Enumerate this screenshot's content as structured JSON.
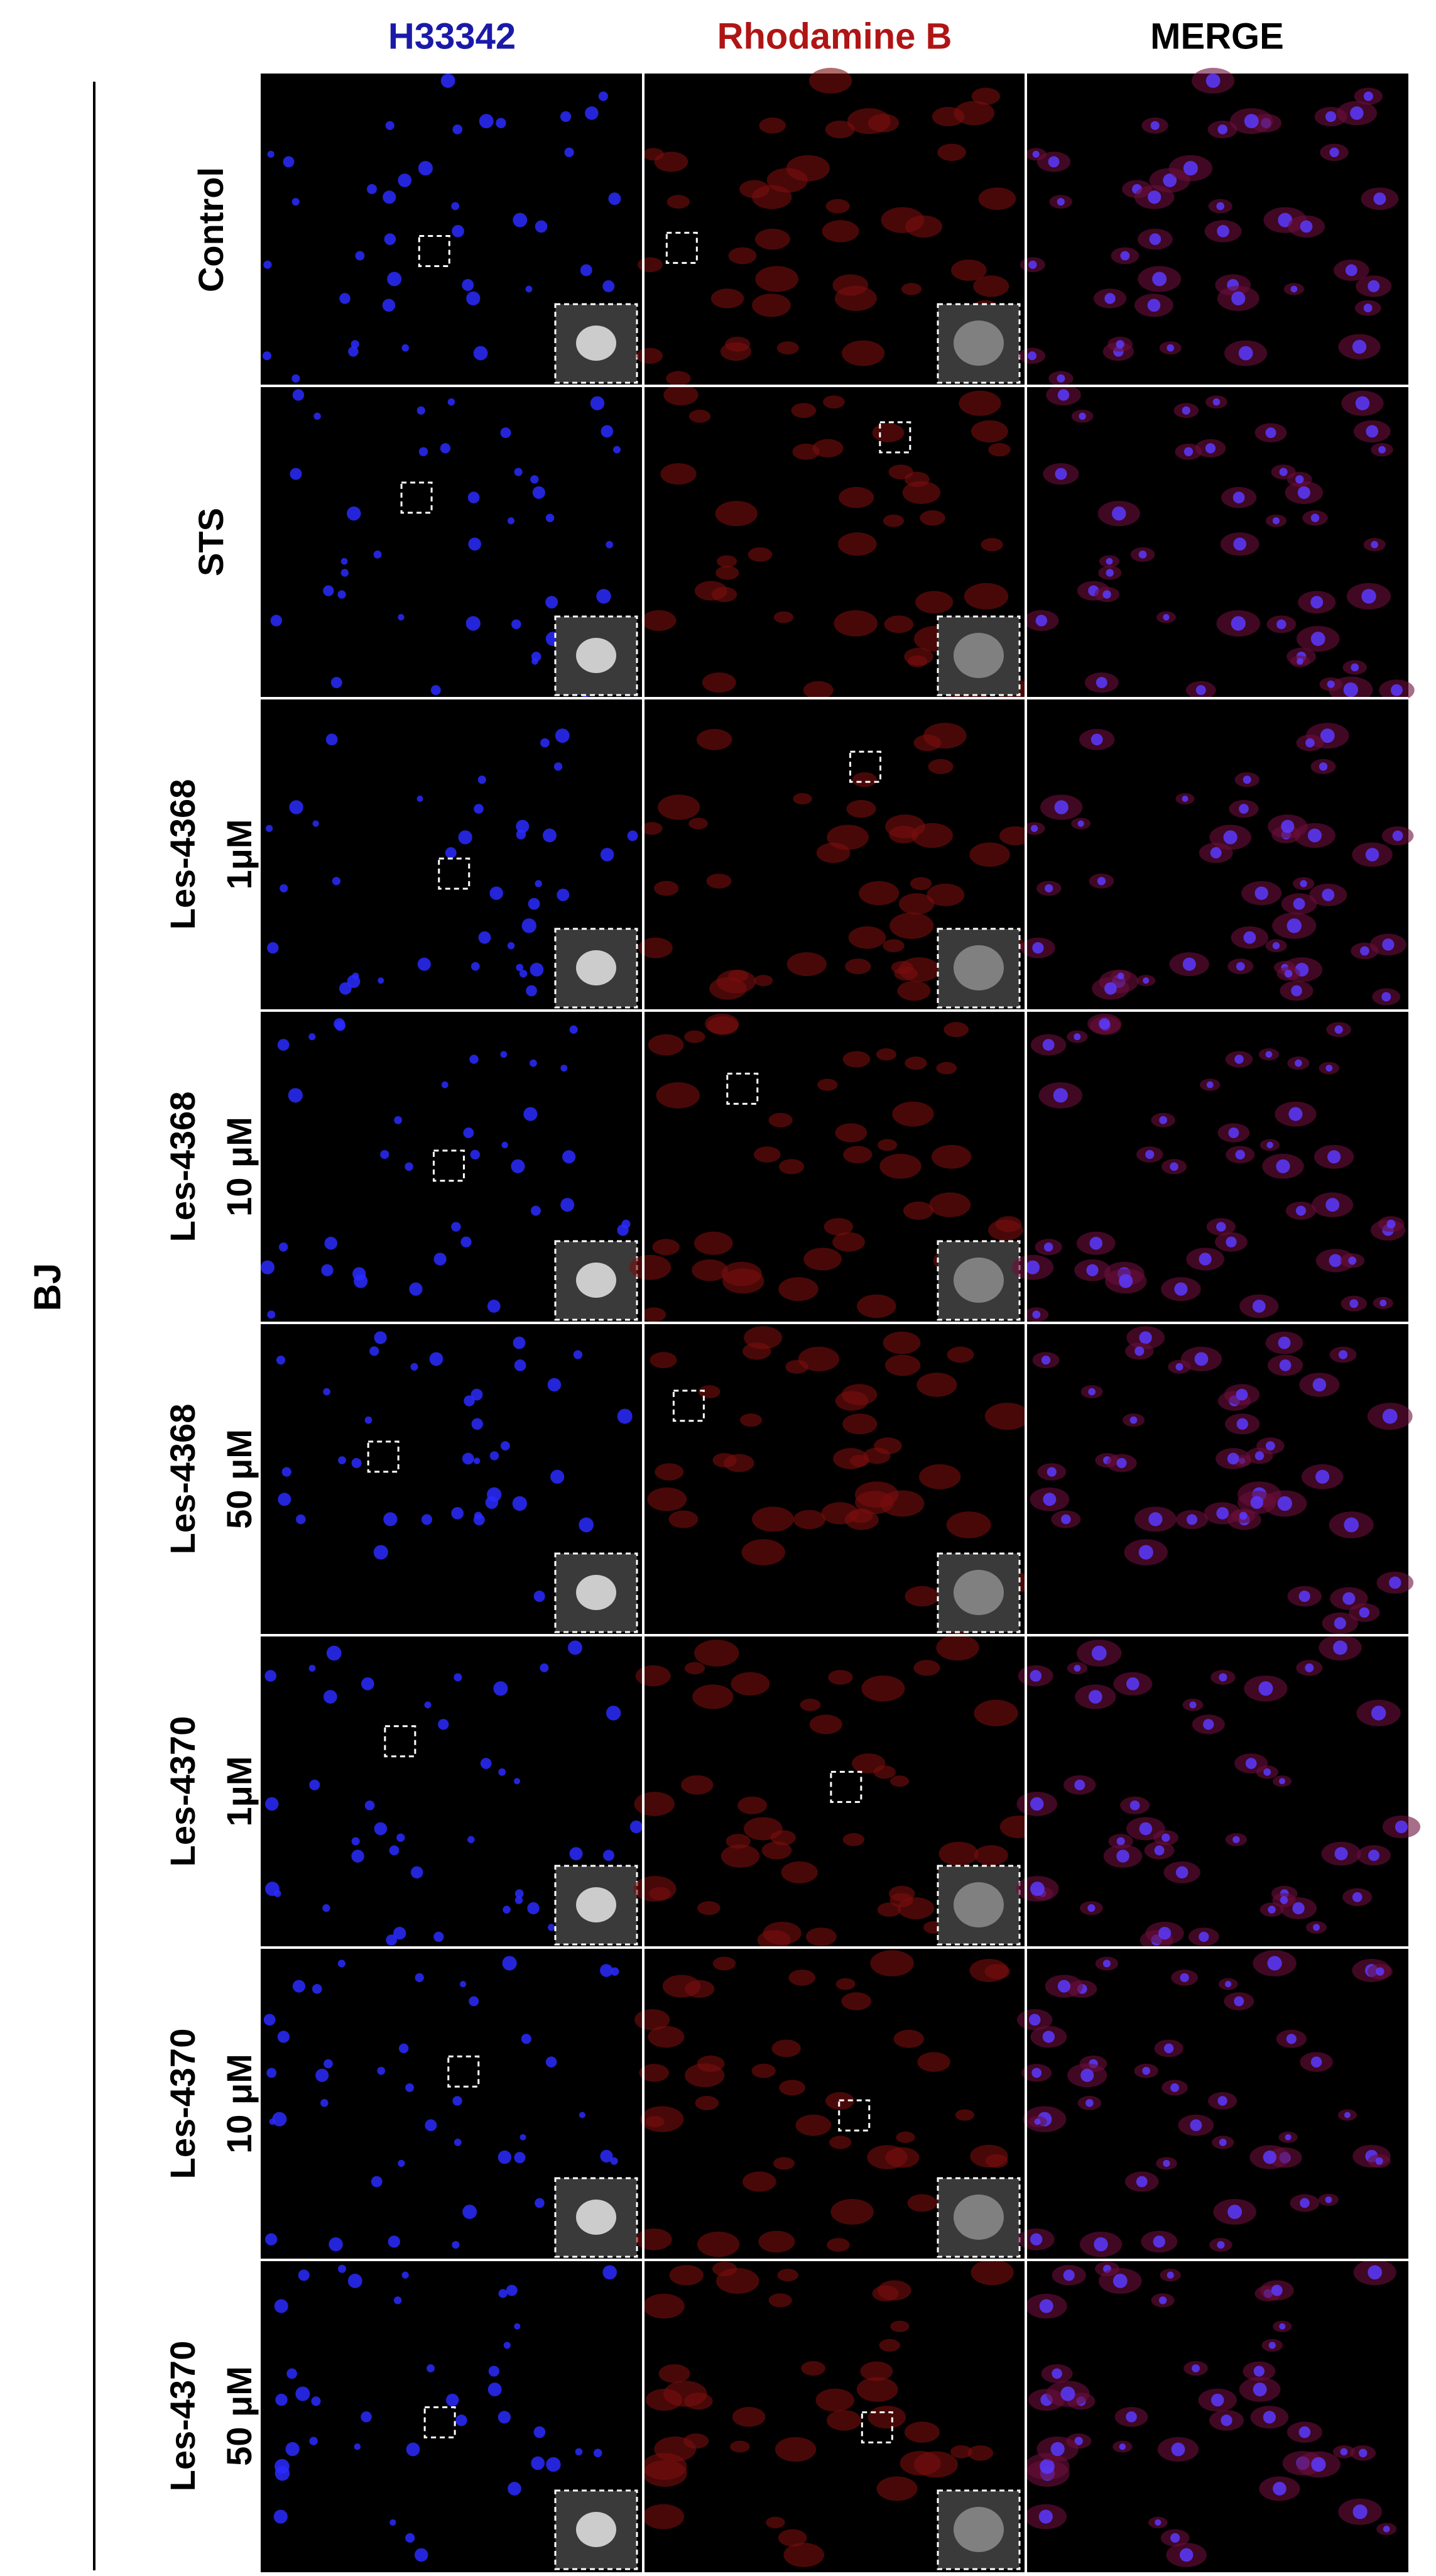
{
  "figure": {
    "side_label": "BJ",
    "columns": [
      "H33342",
      "Rhodamine B",
      "MERGE"
    ],
    "rows": [
      {
        "lines": [
          "Control"
        ]
      },
      {
        "lines": [
          "STS"
        ]
      },
      {
        "lines": [
          "Les-4368",
          "1μM"
        ]
      },
      {
        "lines": [
          "Les-4368",
          "10 μM"
        ]
      },
      {
        "lines": [
          "Les-4368",
          "50 μM"
        ]
      },
      {
        "lines": [
          "Les-4370",
          "1μM"
        ]
      },
      {
        "lines": [
          "Les-4370",
          "10 μM"
        ]
      },
      {
        "lines": [
          "Les-4370",
          "50 μM"
        ]
      }
    ]
  }
}
